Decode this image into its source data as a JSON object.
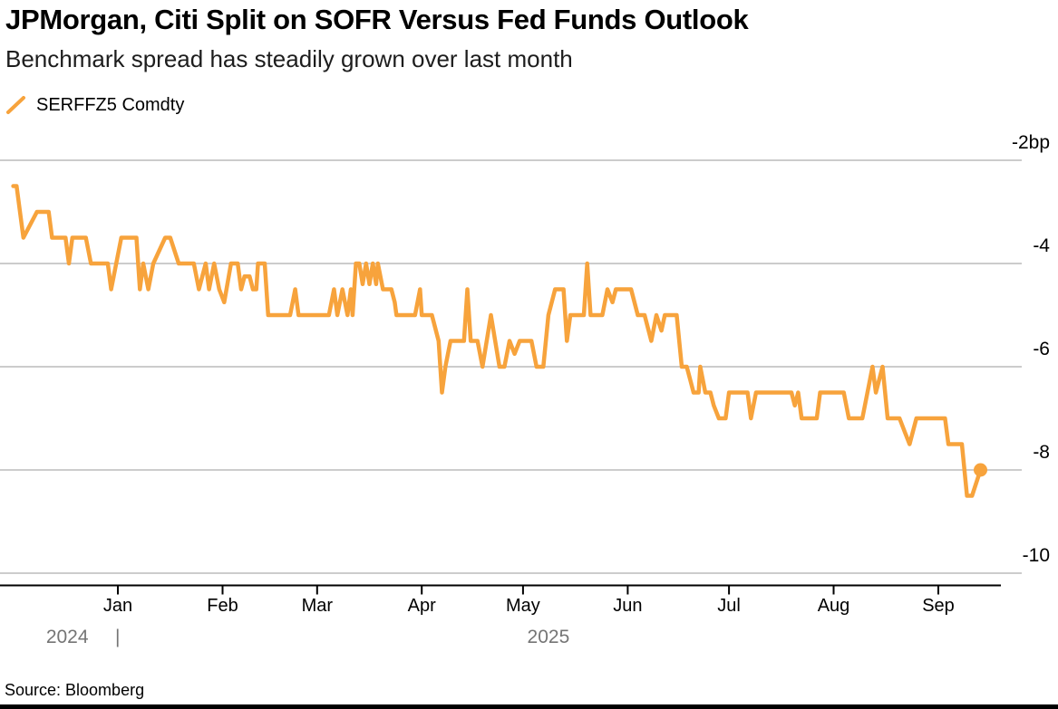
{
  "header": {
    "title": "JPMorgan, Citi Split on SOFR Versus Fed Funds Outlook",
    "subtitle": "Benchmark spread has steadily grown over last month"
  },
  "legend": {
    "series_label": "SERFFZ5 Comdty",
    "swatch_color": "#F7A33C"
  },
  "source": "Source: Bloomberg",
  "colors": {
    "line": "#F7A33C",
    "grid": "#CCCCCC",
    "axis": "#000000",
    "text": "#000000",
    "year_label": "#757575",
    "background": "#FFFFFF"
  },
  "chart_data": {
    "type": "line",
    "title": "JPMorgan, Citi Split on SOFR Versus Fed Funds Outlook",
    "subtitle": "Benchmark spread has steadily grown over last month",
    "unit": "bp",
    "grid": true,
    "legend_position": "top-left",
    "x_axis": {
      "unit": "days since 2024-12-01",
      "range_days": [
        0,
        292
      ],
      "month_ticks": [
        {
          "label": "Jan",
          "day": 31
        },
        {
          "label": "Feb",
          "day": 62
        },
        {
          "label": "Mar",
          "day": 90
        },
        {
          "label": "Apr",
          "day": 121
        },
        {
          "label": "May",
          "day": 151
        },
        {
          "label": "Jun",
          "day": 182
        },
        {
          "label": "Jul",
          "day": 212
        },
        {
          "label": "Aug",
          "day": 243
        },
        {
          "label": "Sep",
          "day": 274
        }
      ],
      "year_labels": [
        {
          "label": "2024",
          "day": 16
        },
        {
          "label": "2025",
          "day": 158.5
        }
      ],
      "year_divider": {
        "glyph": "|",
        "day": 31
      }
    },
    "y_axis": {
      "side": "right",
      "ylim": [
        -10.3,
        -1.35
      ],
      "ticks": [
        {
          "label": "-2bp",
          "value": -2
        },
        {
          "label": "-4",
          "value": -4
        },
        {
          "label": "-6",
          "value": -6
        },
        {
          "label": "-8",
          "value": -8
        },
        {
          "label": "-10",
          "value": -10
        }
      ]
    },
    "series": [
      {
        "name": "SERFFZ5 Comdty",
        "color": "#F7A33C",
        "end_marker": true,
        "last_value_bp": -8.0,
        "points": [
          [
            0,
            -2.5
          ],
          [
            1,
            -2.5
          ],
          [
            3,
            -3.5
          ],
          [
            7,
            -3
          ],
          [
            10.5,
            -3
          ],
          [
            11.5,
            -3.5
          ],
          [
            15.5,
            -3.5
          ],
          [
            16.5,
            -4
          ],
          [
            17.5,
            -3.5
          ],
          [
            21.5,
            -3.5
          ],
          [
            23,
            -4
          ],
          [
            28,
            -4
          ],
          [
            29,
            -4.5
          ],
          [
            32,
            -3.5
          ],
          [
            36.5,
            -3.5
          ],
          [
            37.5,
            -4.5
          ],
          [
            38.5,
            -4
          ],
          [
            40,
            -4.5
          ],
          [
            41.5,
            -4
          ],
          [
            45,
            -3.5
          ],
          [
            46.5,
            -3.5
          ],
          [
            49,
            -4
          ],
          [
            53.5,
            -4
          ],
          [
            55,
            -4.5
          ],
          [
            57,
            -4
          ],
          [
            58,
            -4.5
          ],
          [
            59.5,
            -4
          ],
          [
            61,
            -4.5
          ],
          [
            62.5,
            -4.75
          ],
          [
            64.5,
            -4
          ],
          [
            66.5,
            -4
          ],
          [
            67.5,
            -4.5
          ],
          [
            68.5,
            -4.25
          ],
          [
            70,
            -4.25
          ],
          [
            71,
            -4.5
          ],
          [
            72,
            -4.5
          ],
          [
            72.5,
            -4
          ],
          [
            74.5,
            -4
          ],
          [
            75.5,
            -5
          ],
          [
            82,
            -5
          ],
          [
            83.5,
            -4.5
          ],
          [
            84.5,
            -5
          ],
          [
            93.5,
            -5
          ],
          [
            95,
            -4.5
          ],
          [
            96,
            -5
          ],
          [
            97.5,
            -4.5
          ],
          [
            99,
            -5
          ],
          [
            100,
            -4.5
          ],
          [
            100.5,
            -5
          ],
          [
            101.5,
            -4
          ],
          [
            102.5,
            -4
          ],
          [
            103.5,
            -4.4
          ],
          [
            104.5,
            -4
          ],
          [
            105.5,
            -4.4
          ],
          [
            106.5,
            -4
          ],
          [
            107.5,
            -4.4
          ],
          [
            108,
            -4
          ],
          [
            109.5,
            -4.5
          ],
          [
            112,
            -4.5
          ],
          [
            113,
            -4.75
          ],
          [
            113.5,
            -5
          ],
          [
            119,
            -5
          ],
          [
            120.5,
            -4.5
          ],
          [
            121,
            -5
          ],
          [
            124,
            -5
          ],
          [
            126,
            -5.5
          ],
          [
            127,
            -6.5
          ],
          [
            128,
            -6
          ],
          [
            129.5,
            -5.5
          ],
          [
            133.5,
            -5.5
          ],
          [
            134.5,
            -4.5
          ],
          [
            135.5,
            -5.5
          ],
          [
            137.5,
            -5.5
          ],
          [
            139,
            -6
          ],
          [
            141.5,
            -5
          ],
          [
            144,
            -6
          ],
          [
            145.5,
            -6
          ],
          [
            147,
            -5.5
          ],
          [
            148.5,
            -5.75
          ],
          [
            150,
            -5.5
          ],
          [
            153.5,
            -5.5
          ],
          [
            155,
            -6
          ],
          [
            157,
            -6
          ],
          [
            158.5,
            -5
          ],
          [
            160.5,
            -4.5
          ],
          [
            163,
            -4.5
          ],
          [
            164,
            -5.5
          ],
          [
            165,
            -5
          ],
          [
            169,
            -5
          ],
          [
            170,
            -4
          ],
          [
            171,
            -5
          ],
          [
            174.5,
            -5
          ],
          [
            176,
            -4.5
          ],
          [
            177.5,
            -4.75
          ],
          [
            178.5,
            -4.5
          ],
          [
            183,
            -4.5
          ],
          [
            185,
            -5
          ],
          [
            187,
            -5
          ],
          [
            189,
            -5.5
          ],
          [
            190.5,
            -5
          ],
          [
            192,
            -5.3
          ],
          [
            193,
            -5
          ],
          [
            196.5,
            -5
          ],
          [
            198,
            -6
          ],
          [
            199.5,
            -6
          ],
          [
            200.5,
            -6.25
          ],
          [
            201.5,
            -6.5
          ],
          [
            203,
            -6.5
          ],
          [
            203.5,
            -6
          ],
          [
            205,
            -6.5
          ],
          [
            206.5,
            -6.5
          ],
          [
            207.5,
            -6.75
          ],
          [
            209,
            -7
          ],
          [
            211,
            -7
          ],
          [
            212,
            -6.5
          ],
          [
            217.5,
            -6.5
          ],
          [
            218.5,
            -7
          ],
          [
            220,
            -6.5
          ],
          [
            230.5,
            -6.5
          ],
          [
            231.5,
            -6.75
          ],
          [
            232.5,
            -6.5
          ],
          [
            233.5,
            -7
          ],
          [
            238,
            -7
          ],
          [
            239,
            -6.5
          ],
          [
            246,
            -6.5
          ],
          [
            247.5,
            -7
          ],
          [
            251.5,
            -7
          ],
          [
            253,
            -6.5
          ],
          [
            254.5,
            -6
          ],
          [
            255.5,
            -6.5
          ],
          [
            257.5,
            -6
          ],
          [
            259,
            -7
          ],
          [
            262.5,
            -7
          ],
          [
            264,
            -7.25
          ],
          [
            265.5,
            -7.5
          ],
          [
            267.5,
            -7
          ],
          [
            276,
            -7
          ],
          [
            277,
            -7.5
          ],
          [
            281,
            -7.5
          ],
          [
            282.5,
            -8.5
          ],
          [
            284,
            -8.5
          ],
          [
            286.5,
            -8
          ]
        ]
      }
    ]
  }
}
